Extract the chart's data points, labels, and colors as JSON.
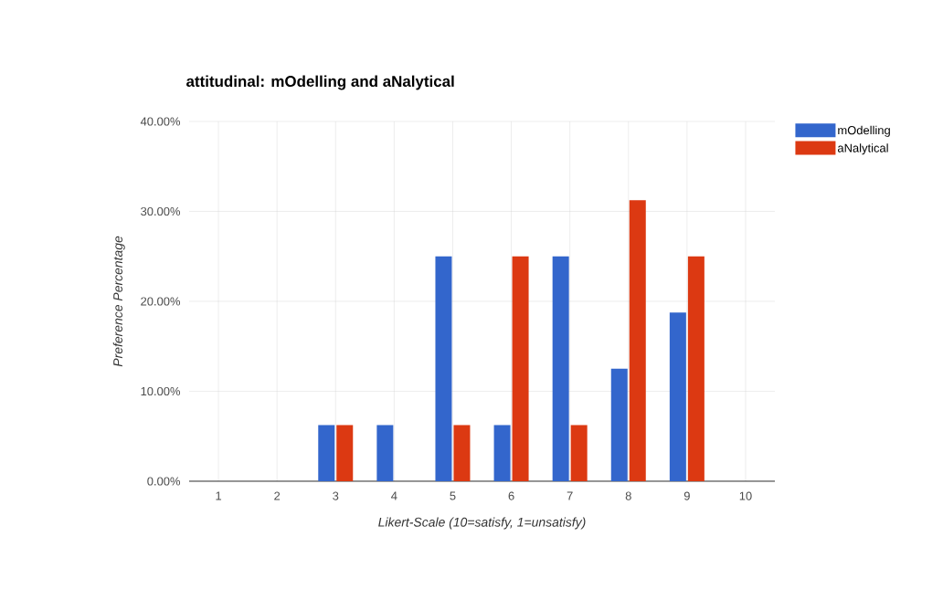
{
  "chart_data": {
    "type": "bar",
    "title": "attitudinal: mOdelling and aNalytical",
    "xlabel": "Likert-Scale (10=satisfy, 1=unsatisfy)",
    "ylabel": "Preference Percentage",
    "categories": [
      "1",
      "2",
      "3",
      "4",
      "5",
      "6",
      "7",
      "8",
      "9",
      "10"
    ],
    "series": [
      {
        "name": "mOdelling",
        "color": "#3366cc",
        "values": [
          0,
          0,
          6.25,
          6.25,
          25,
          6.25,
          25,
          12.5,
          18.75,
          0
        ]
      },
      {
        "name": "aNalytical",
        "color": "#dc3912",
        "values": [
          0,
          0,
          6.25,
          0,
          6.25,
          25,
          6.25,
          31.25,
          25,
          0
        ]
      }
    ],
    "ylim": [
      0,
      40
    ],
    "yticks": [
      {
        "value": 0,
        "label": "0.00%"
      },
      {
        "value": 10,
        "label": "10.00%"
      },
      {
        "value": 20,
        "label": "20.00%"
      },
      {
        "value": 30,
        "label": "30.00%"
      },
      {
        "value": 40,
        "label": "40.00%"
      }
    ],
    "grid": true,
    "legend": "top right"
  }
}
